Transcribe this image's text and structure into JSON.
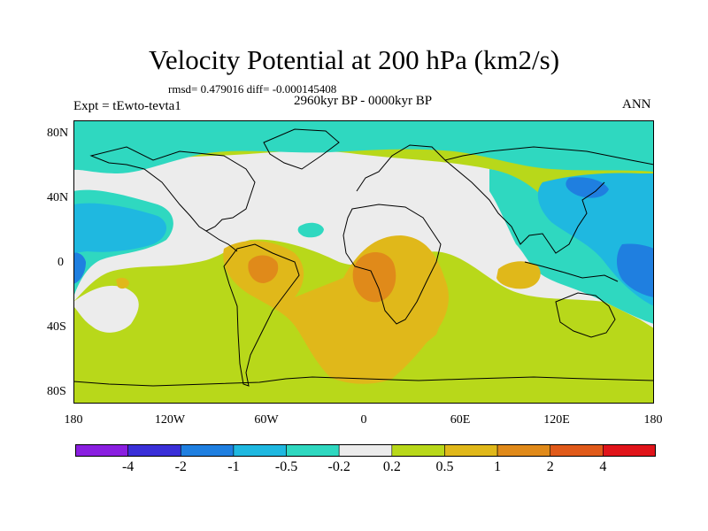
{
  "title": "Velocity Potential at 200 hPa (km2/s)",
  "stats": "rmsd= 0.479016  diff= -0.000145408",
  "period": "2960kyr BP - 0000kyr BP",
  "experiment": "Expt = tEwto-tevta1",
  "season": "ANN",
  "y_ticks": [
    "80N",
    "40N",
    "0",
    "40S",
    "80S"
  ],
  "x_ticks": [
    "180",
    "120W",
    "60W",
    "0",
    "60E",
    "120E",
    "180"
  ],
  "colorbar": {
    "labels": [
      "-4",
      "-2",
      "-1",
      "-0.5",
      "-0.2",
      "0.2",
      "0.5",
      "1",
      "2",
      "4"
    ],
    "colors": [
      "#8a1fe0",
      "#3a2fd8",
      "#1f7fe0",
      "#1fb8e0",
      "#2fd8c0",
      "#ececec",
      "#b8d81a",
      "#e0b81a",
      "#e08a1a",
      "#e05a1a",
      "#e0141a"
    ]
  },
  "palette": {
    "teal": "#2fd8c0",
    "cyan": "#1fb8e0",
    "blue": "#1f7fe0",
    "white": "#ececec",
    "green": "#b8d81a",
    "yellow": "#e0b81a",
    "orange": "#e08a1a",
    "red": "#e05a1a"
  }
}
